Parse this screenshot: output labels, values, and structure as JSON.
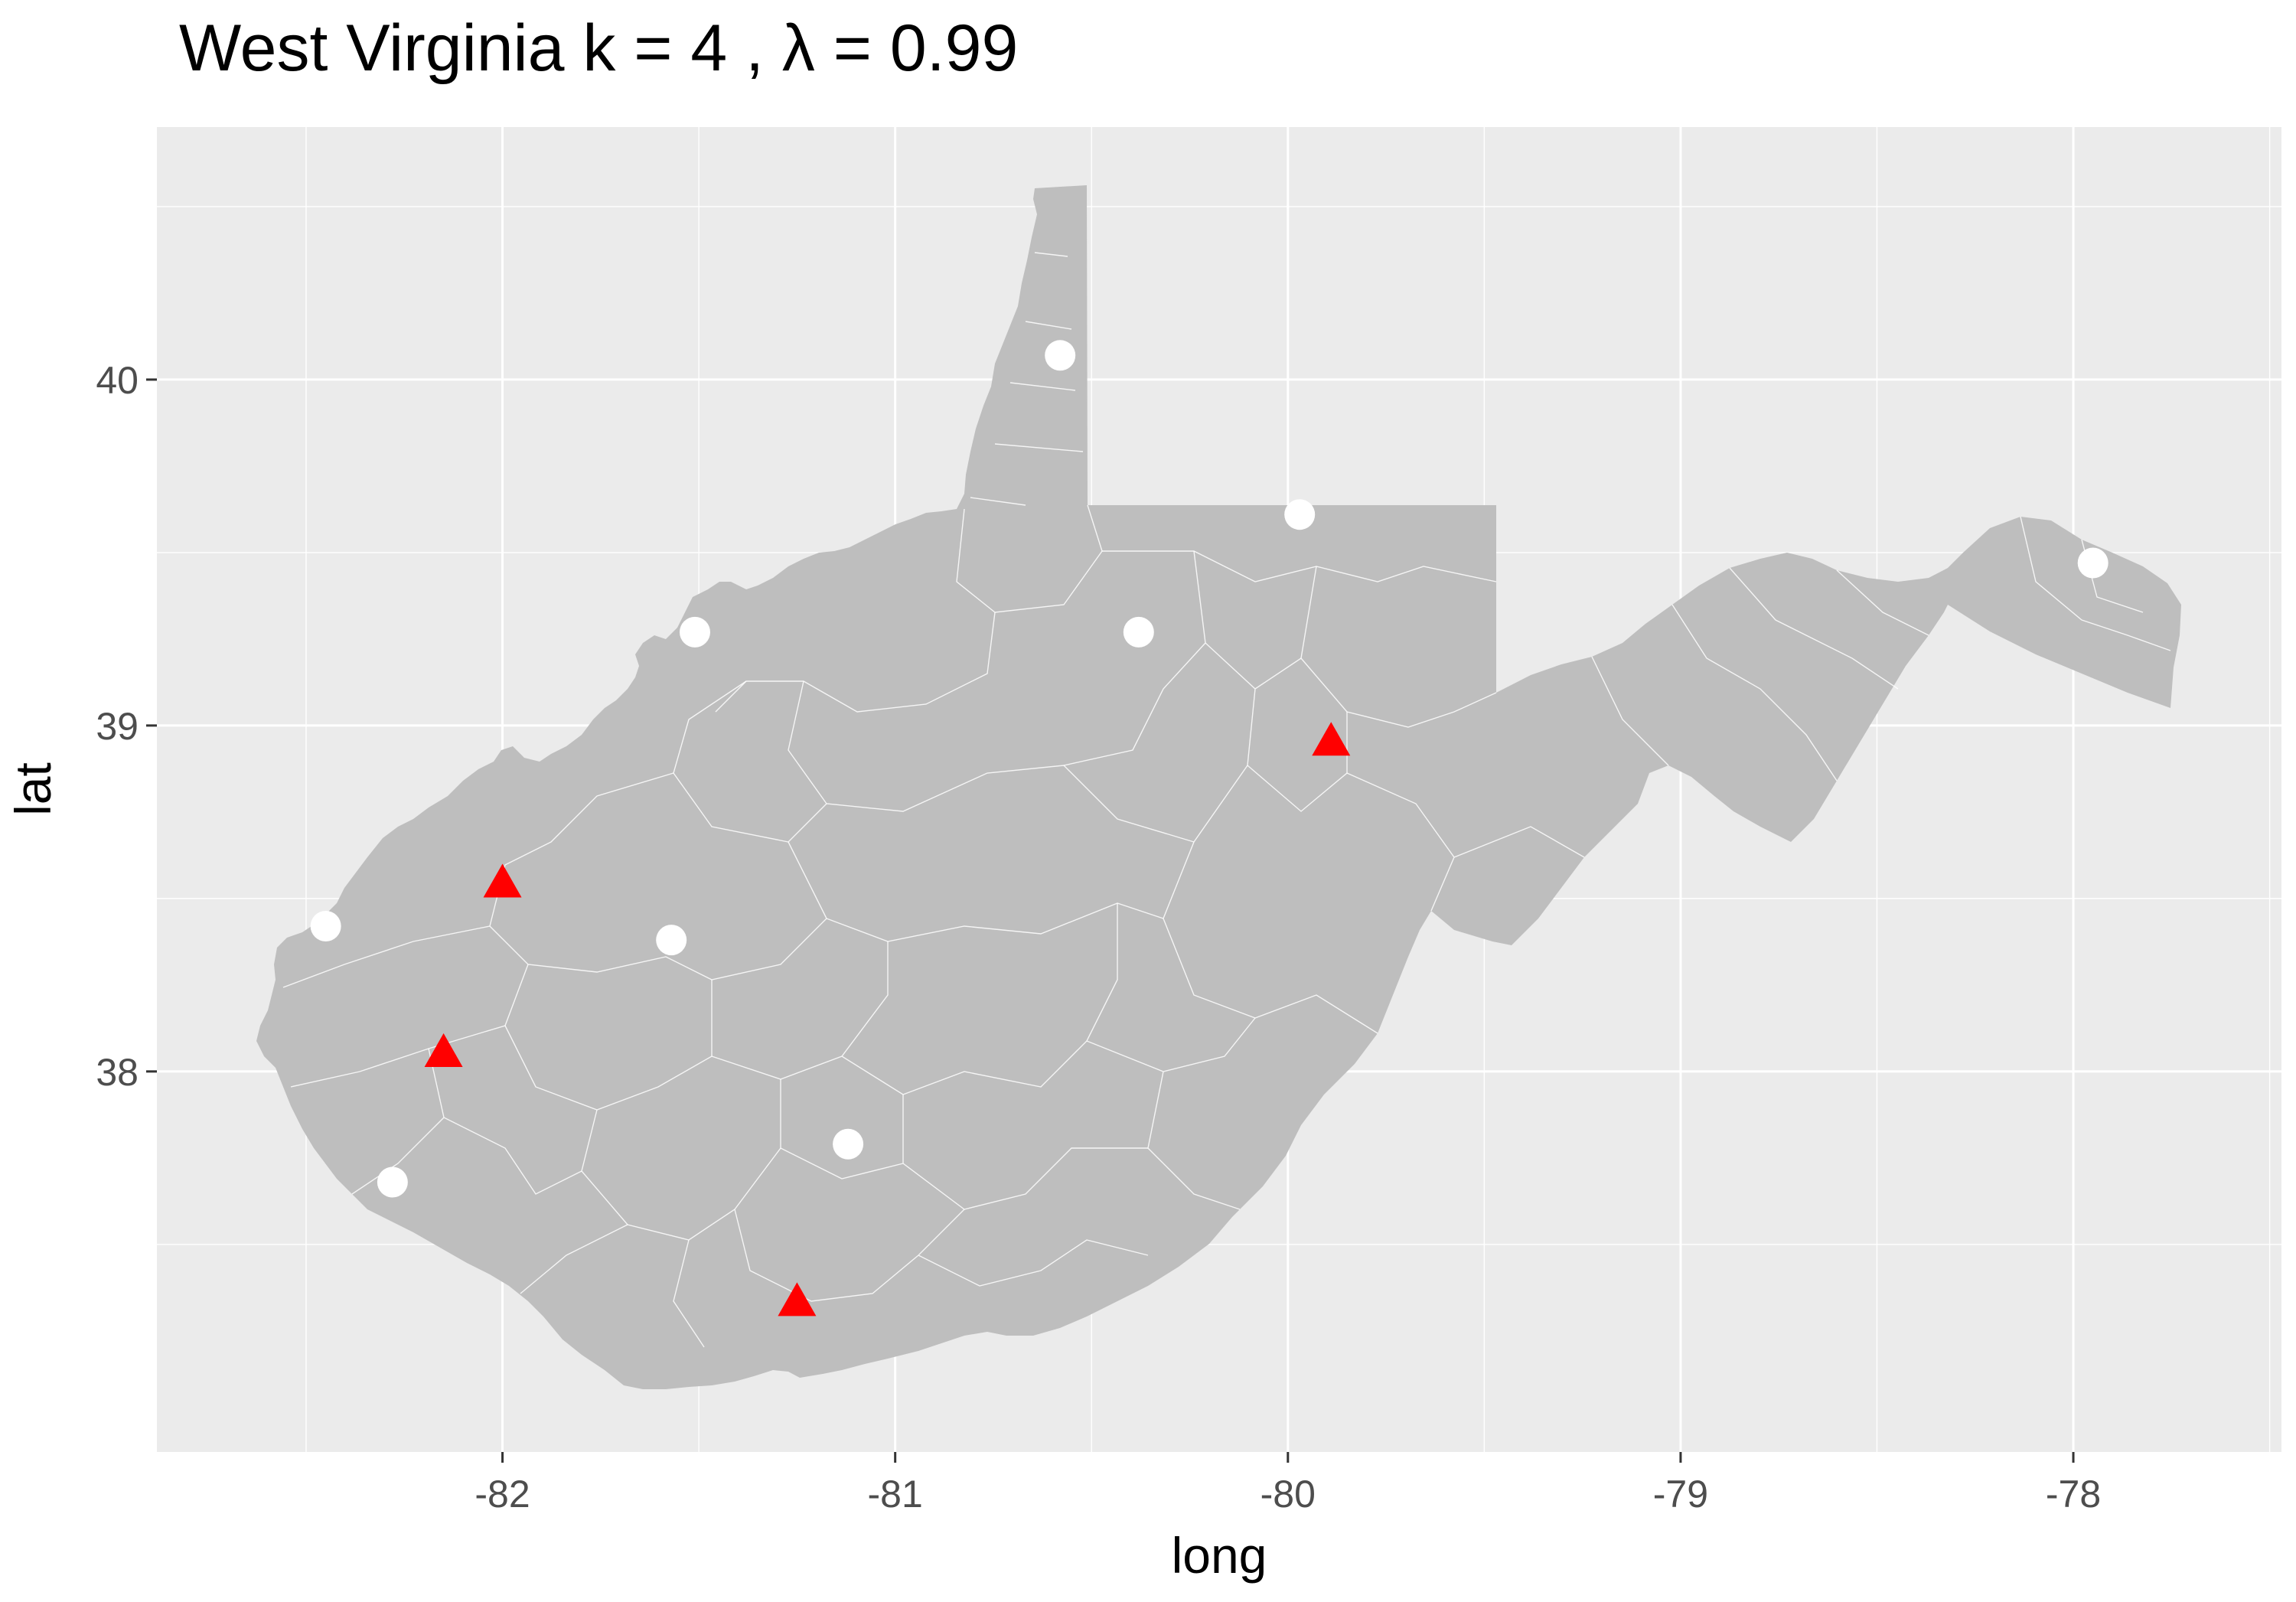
{
  "title": "West Virginia  k =  4 ,  λ  =  0.99",
  "colors": {
    "panel_background": "#ebebeb",
    "land": "#bebebe",
    "boundary": "#ffffff",
    "point_white": "#ffffff",
    "point_red": "#ff0000"
  },
  "chart_data": {
    "type": "scatter",
    "title": "West Virginia  k =  4 ,  λ  =  0.99",
    "xlabel": "long",
    "ylabel": "lat",
    "xlim": [
      -82.88,
      -77.47
    ],
    "ylim": [
      36.9,
      40.73
    ],
    "x_ticks": [
      -82,
      -81,
      -80,
      -79,
      -78
    ],
    "y_ticks": [
      38,
      39,
      40
    ],
    "x_tick_labels": [
      "-82",
      "-81",
      "-80",
      "-79",
      "-78"
    ],
    "y_tick_labels": [
      "38",
      "39",
      "40"
    ],
    "grid": true,
    "legend": "none",
    "series": [
      {
        "marker": "circle",
        "color": "#ffffff",
        "points": [
          {
            "x": -80.58,
            "y": 40.07
          },
          {
            "x": -79.97,
            "y": 39.61
          },
          {
            "x": -77.95,
            "y": 39.47
          },
          {
            "x": -81.51,
            "y": 39.27
          },
          {
            "x": -80.38,
            "y": 39.27
          },
          {
            "x": -82.45,
            "y": 38.42
          },
          {
            "x": -81.57,
            "y": 38.38
          },
          {
            "x": -81.12,
            "y": 37.79
          },
          {
            "x": -82.28,
            "y": 37.68
          }
        ]
      },
      {
        "marker": "triangle",
        "color": "#ff0000",
        "points": [
          {
            "x": -79.89,
            "y": 38.95
          },
          {
            "x": -82.0,
            "y": 38.54
          },
          {
            "x": -82.15,
            "y": 38.05
          },
          {
            "x": -81.25,
            "y": 37.33
          }
        ]
      }
    ]
  }
}
